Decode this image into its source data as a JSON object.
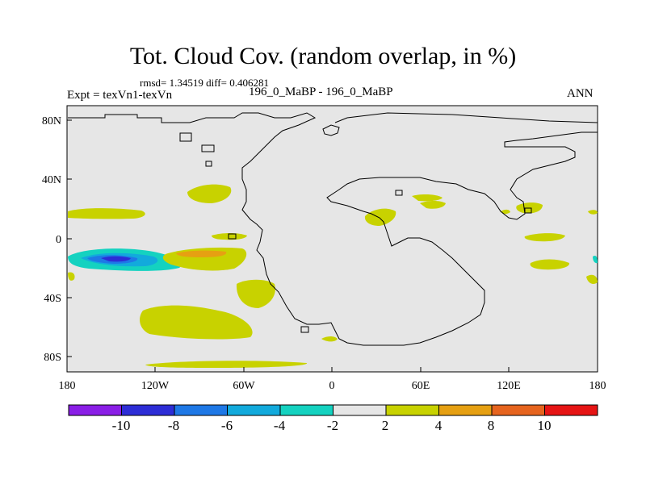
{
  "title": "Tot. Cloud Cov. (random overlap, in %)",
  "stats": "rmsd= 1.34519 diff= 0.406281",
  "expt": "Expt = texVn1-texVn",
  "case": "196_0_MaBP - 196_0_MaBP",
  "season": "ANN",
  "map": {
    "lon_ticks": [
      "180",
      "120W",
      "60W",
      "0",
      "60E",
      "120E",
      "180"
    ],
    "lat_ticks": [
      "80N",
      "40N",
      "0",
      "40S",
      "80S"
    ],
    "background_color": "#e6e6e6"
  },
  "colorbar": {
    "colors": [
      "#8a1ee6",
      "#2d2dd6",
      "#1e78e6",
      "#12aadc",
      "#14d2c0",
      "#e6e6e6",
      "#c8d200",
      "#e6a012",
      "#e6641e",
      "#e61414"
    ],
    "labels": [
      "-10",
      "-8",
      "-6",
      "-4",
      "-2",
      "2",
      "4",
      "8",
      "10"
    ]
  }
}
